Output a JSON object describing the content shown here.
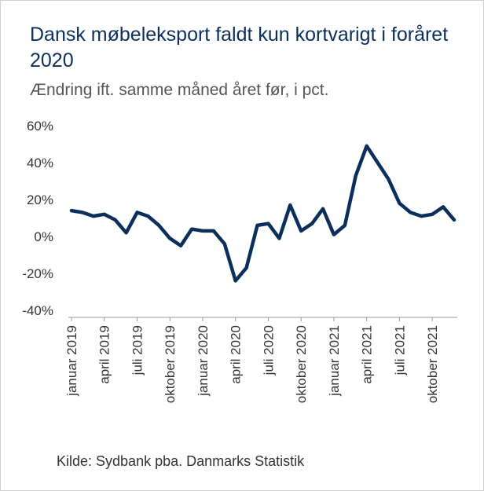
{
  "title": "Dansk møbeleksport faldt kun kortvarigt i foråret 2020",
  "subtitle": "Ændring ift. samme måned året før, i pct.",
  "source": "Kilde: Sydbank pba. Danmarks Statistik",
  "chart_data": {
    "type": "line",
    "title": "Dansk møbeleksport faldt kun kortvarigt i foråret 2020",
    "subtitle": "Ændring ift. samme måned året før, i pct.",
    "xlabel": "",
    "ylabel": "",
    "ylim": [
      -40,
      60
    ],
    "yticks": [
      60,
      40,
      20,
      0,
      -20,
      -40
    ],
    "ytick_labels": [
      "60%",
      "40%",
      "20%",
      "0%",
      "-20%",
      "-40%"
    ],
    "grid": false,
    "legend": "none",
    "line_color": "#0b2f5b",
    "x": [
      "2019-01",
      "2019-02",
      "2019-03",
      "2019-04",
      "2019-05",
      "2019-06",
      "2019-07",
      "2019-08",
      "2019-09",
      "2019-10",
      "2019-11",
      "2019-12",
      "2020-01",
      "2020-02",
      "2020-03",
      "2020-04",
      "2020-05",
      "2020-06",
      "2020-07",
      "2020-08",
      "2020-09",
      "2020-10",
      "2020-11",
      "2020-12",
      "2021-01",
      "2021-02",
      "2021-03",
      "2021-04",
      "2021-05",
      "2021-06",
      "2021-07",
      "2021-08",
      "2021-09",
      "2021-10",
      "2021-11",
      "2021-12"
    ],
    "x_tick_labels": [
      {
        "index": 0,
        "label": "januar 2019"
      },
      {
        "index": 3,
        "label": "april 2019"
      },
      {
        "index": 6,
        "label": "juli 2019"
      },
      {
        "index": 9,
        "label": "oktober 2019"
      },
      {
        "index": 12,
        "label": "januar 2020"
      },
      {
        "index": 15,
        "label": "april 2020"
      },
      {
        "index": 18,
        "label": "juli 2020"
      },
      {
        "index": 21,
        "label": "oktober 2020"
      },
      {
        "index": 24,
        "label": "januar 2021"
      },
      {
        "index": 27,
        "label": "april 2021"
      },
      {
        "index": 30,
        "label": "juli 2021"
      },
      {
        "index": 33,
        "label": "oktober 2021"
      }
    ],
    "series": [
      {
        "values": [
          14,
          13,
          11,
          12,
          9,
          2,
          13,
          11,
          6,
          -1,
          -5,
          4,
          3,
          3,
          -4,
          -24,
          -17,
          6,
          7,
          -1,
          17,
          3,
          7,
          15,
          1,
          6,
          33,
          49,
          40,
          31,
          18,
          13,
          11,
          12,
          16,
          9
        ]
      }
    ]
  }
}
